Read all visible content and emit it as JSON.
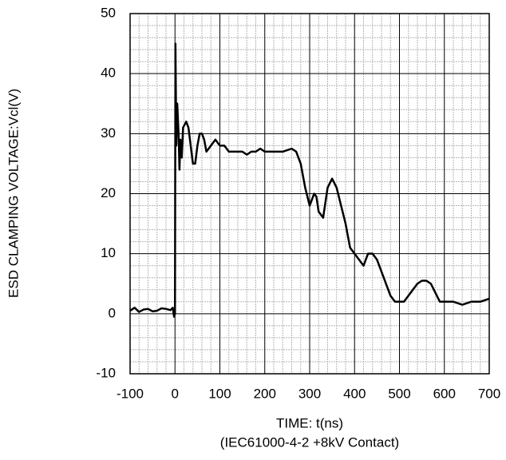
{
  "chart_data": {
    "type": "line",
    "ylabel": "ESD CLAMPING VOLTAGE:Vcl(V)",
    "xlabel": "TIME: t(ns)",
    "annotation": "(IEC61000-4-2 +8kV Contact)",
    "xlim": [
      -100,
      700
    ],
    "xticks": [
      -100,
      0,
      100,
      200,
      300,
      400,
      500,
      600,
      700
    ],
    "ylim": [
      -10,
      50
    ],
    "yticks": [
      -10,
      0,
      10,
      20,
      30,
      40,
      50
    ],
    "grid": true,
    "minor_grid": true,
    "color": "#000000",
    "x": [
      -100,
      -90,
      -80,
      -70,
      -60,
      -50,
      -40,
      -30,
      -20,
      -10,
      -5,
      -2,
      0,
      1,
      3,
      5,
      8,
      10,
      12,
      15,
      18,
      25,
      30,
      35,
      40,
      45,
      50,
      55,
      60,
      65,
      70,
      80,
      90,
      100,
      110,
      120,
      130,
      140,
      150,
      160,
      170,
      180,
      190,
      200,
      220,
      240,
      260,
      270,
      280,
      290,
      300,
      310,
      315,
      320,
      330,
      340,
      350,
      360,
      370,
      380,
      390,
      400,
      410,
      420,
      430,
      440,
      450,
      460,
      470,
      480,
      490,
      500,
      510,
      520,
      530,
      540,
      550,
      560,
      570,
      580,
      590,
      600,
      620,
      640,
      660,
      680,
      700
    ],
    "values": [
      0.5,
      1,
      0.3,
      0.7,
      0.8,
      0.4,
      0.5,
      0.9,
      0.8,
      0.6,
      1,
      -0.5,
      0,
      45,
      28,
      35,
      30,
      24,
      29,
      26,
      31,
      32,
      31,
      28,
      25,
      25,
      28,
      30,
      30,
      29,
      27,
      28,
      29,
      28,
      28,
      27,
      27,
      27,
      27,
      26.5,
      27,
      27,
      27.5,
      27,
      27,
      27,
      27.5,
      27,
      25,
      21,
      18,
      20,
      19.5,
      17,
      16,
      21,
      22.5,
      21,
      18,
      15,
      11,
      10,
      9,
      8,
      10,
      10,
      9,
      7,
      5,
      3,
      2,
      2,
      2,
      3,
      4,
      5,
      5.5,
      5.5,
      5,
      3.5,
      2,
      2,
      2,
      1.5,
      2,
      2,
      2.5
    ]
  }
}
